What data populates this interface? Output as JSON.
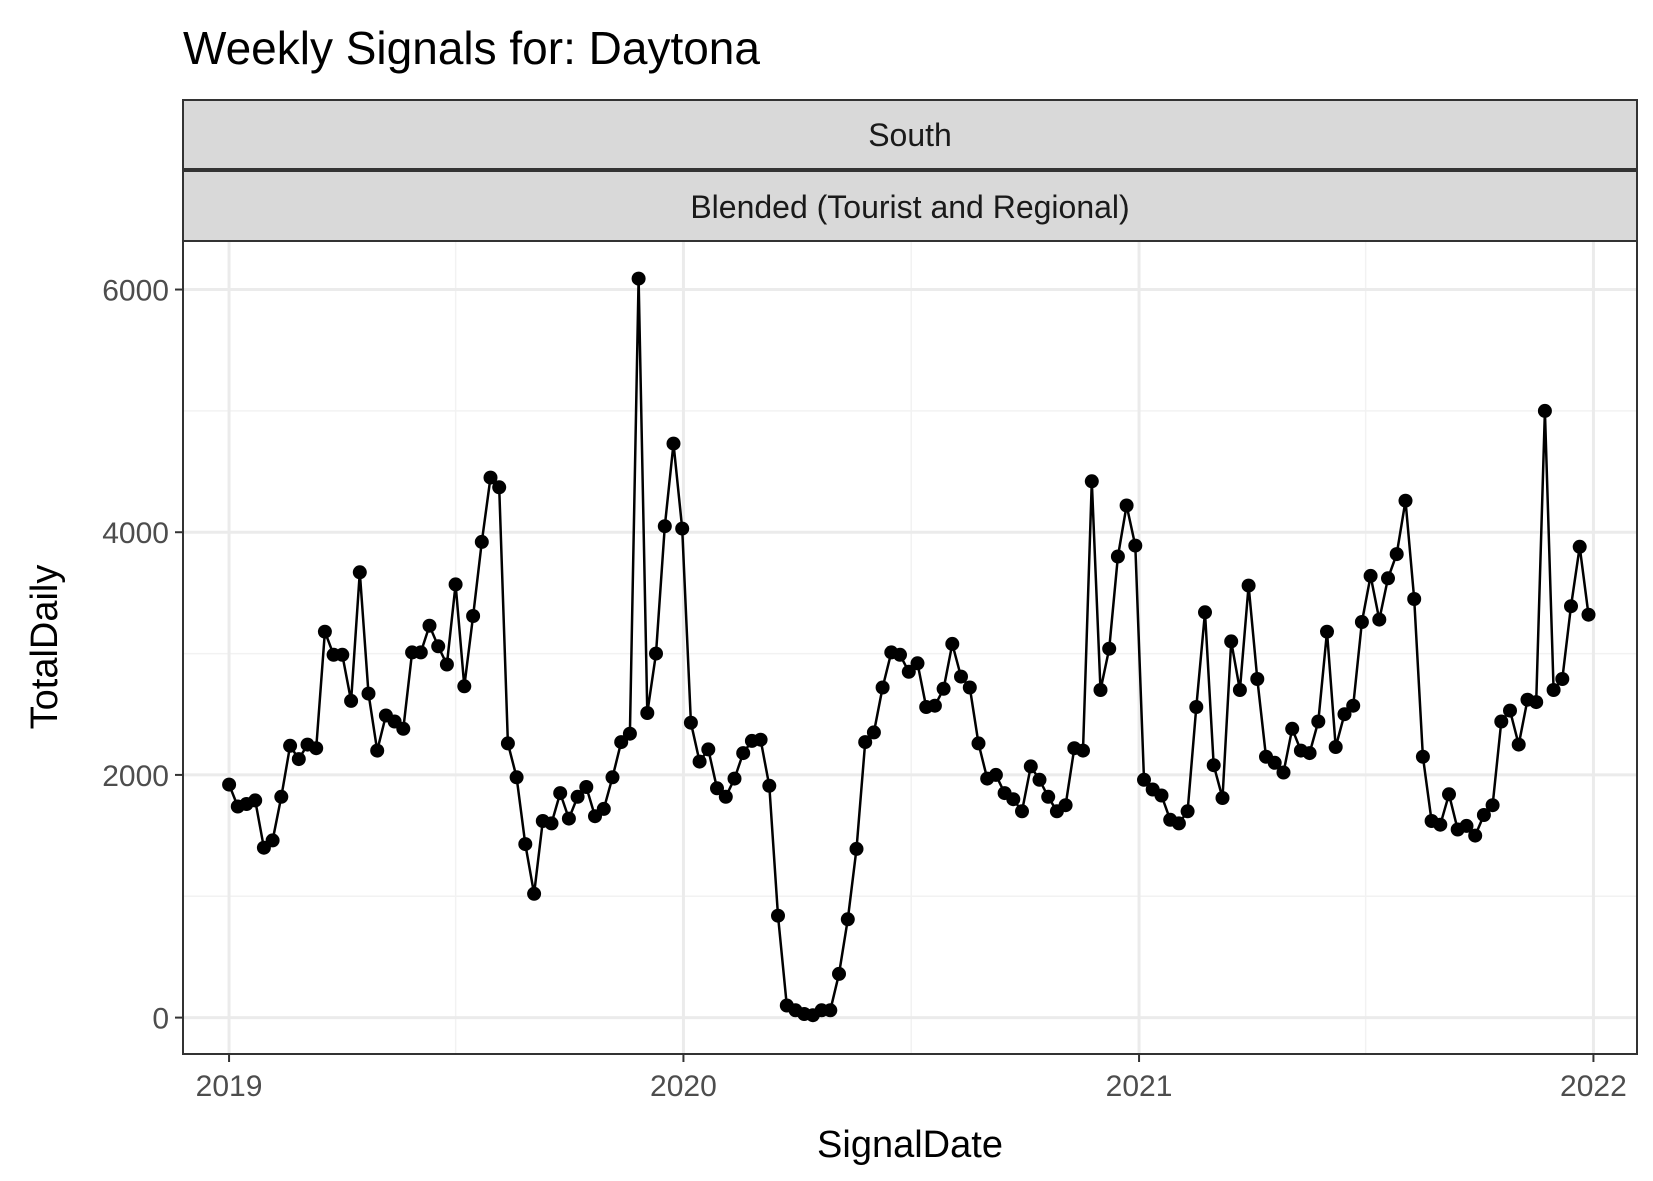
{
  "chart_data": {
    "type": "line",
    "title": "Weekly Signals for: Daytona",
    "facet_strips": [
      "South",
      "Blended (Tourist and Regional)"
    ],
    "xlabel": "SignalDate",
    "ylabel": "TotalDaily",
    "x_ticks": [
      "2019",
      "2020",
      "2021",
      "2022"
    ],
    "y_ticks": [
      0,
      2000,
      4000,
      6000
    ],
    "xlim": [
      "2018-11-25",
      "2022-02-05"
    ],
    "ylim": [
      -300,
      6400
    ],
    "markers": true,
    "grid": true,
    "legend": "none",
    "colors": {
      "line": "#000000",
      "point": "#000000",
      "strip_fill": "#d9d9d9",
      "panel_border": "#333333",
      "grid": "#ebebeb"
    },
    "series": [
      {
        "x": [
          "2019-01-01",
          "2019-01-08",
          "2019-01-15",
          "2019-01-22",
          "2019-01-29",
          "2019-02-05",
          "2019-02-12",
          "2019-02-19",
          "2019-02-26",
          "2019-03-05",
          "2019-03-12",
          "2019-03-19",
          "2019-03-26",
          "2019-04-02",
          "2019-04-09",
          "2019-04-16",
          "2019-04-23",
          "2019-04-30",
          "2019-05-07",
          "2019-05-14",
          "2019-05-21",
          "2019-05-28",
          "2019-06-04",
          "2019-06-11",
          "2019-06-18",
          "2019-06-25",
          "2019-07-02",
          "2019-07-09",
          "2019-07-16",
          "2019-07-23",
          "2019-07-30",
          "2019-08-06",
          "2019-08-13",
          "2019-08-20",
          "2019-08-27",
          "2019-09-03",
          "2019-09-10",
          "2019-09-17",
          "2019-09-24",
          "2019-10-01",
          "2019-10-08",
          "2019-10-15",
          "2019-10-22",
          "2019-10-29",
          "2019-11-05",
          "2019-11-12",
          "2019-11-19",
          "2019-11-26",
          "2019-12-03",
          "2019-12-10",
          "2019-12-17",
          "2019-12-24",
          "2019-12-31",
          "2020-01-07",
          "2020-01-14",
          "2020-01-21",
          "2020-01-28",
          "2020-02-04",
          "2020-02-11",
          "2020-02-18",
          "2020-02-25",
          "2020-03-03",
          "2020-03-10",
          "2020-03-17",
          "2020-03-24",
          "2020-03-31",
          "2020-04-07",
          "2020-04-14",
          "2020-04-21",
          "2020-04-28",
          "2020-05-05",
          "2020-05-12",
          "2020-05-19",
          "2020-05-26",
          "2020-06-02",
          "2020-06-09",
          "2020-06-16",
          "2020-06-23",
          "2020-06-30",
          "2020-07-07",
          "2020-07-14",
          "2020-07-21",
          "2020-07-28",
          "2020-08-04",
          "2020-08-11",
          "2020-08-18",
          "2020-08-25",
          "2020-09-01",
          "2020-09-08",
          "2020-09-15",
          "2020-09-22",
          "2020-09-29",
          "2020-10-06",
          "2020-10-13",
          "2020-10-20",
          "2020-10-27",
          "2020-11-03",
          "2020-11-10",
          "2020-11-17",
          "2020-11-24",
          "2020-12-01",
          "2020-12-08",
          "2020-12-15",
          "2020-12-22",
          "2020-12-29",
          "2021-01-05",
          "2021-01-12",
          "2021-01-19",
          "2021-01-26",
          "2021-02-02",
          "2021-02-09",
          "2021-02-16",
          "2021-02-23",
          "2021-03-02",
          "2021-03-09",
          "2021-03-16",
          "2021-03-23",
          "2021-03-30",
          "2021-04-06",
          "2021-04-13",
          "2021-04-20",
          "2021-04-27",
          "2021-05-04",
          "2021-05-11",
          "2021-05-18",
          "2021-05-25",
          "2021-06-01",
          "2021-06-08",
          "2021-06-15",
          "2021-06-22",
          "2021-06-29",
          "2021-07-06",
          "2021-07-13",
          "2021-07-20",
          "2021-07-27",
          "2021-08-03",
          "2021-08-10",
          "2021-08-17",
          "2021-08-24",
          "2021-08-31",
          "2021-09-07",
          "2021-09-14",
          "2021-09-21",
          "2021-09-28",
          "2021-10-05",
          "2021-10-12",
          "2021-10-19",
          "2021-10-26",
          "2021-11-02",
          "2021-11-09",
          "2021-11-16",
          "2021-11-23",
          "2021-11-30",
          "2021-12-07",
          "2021-12-14",
          "2021-12-21",
          "2021-12-28"
        ],
        "values": [
          1920,
          1740,
          1760,
          1790,
          1400,
          1460,
          1820,
          2240,
          2130,
          2250,
          2220,
          3180,
          2990,
          2990,
          2610,
          3670,
          2670,
          2200,
          2490,
          2440,
          2380,
          3010,
          3010,
          3230,
          3060,
          2910,
          3570,
          2730,
          3310,
          3920,
          4450,
          4370,
          2260,
          1980,
          1430,
          1020,
          1620,
          1600,
          1850,
          1640,
          1820,
          1900,
          1660,
          1720,
          1980,
          2270,
          2340,
          6090,
          2510,
          3000,
          4050,
          4730,
          4030,
          2430,
          2110,
          2210,
          1890,
          1820,
          1970,
          2180,
          2280,
          2290,
          1910,
          840,
          100,
          60,
          30,
          20,
          60,
          60,
          360,
          810,
          1390,
          2270,
          2350,
          2720,
          3010,
          2990,
          2850,
          2920,
          2560,
          2570,
          2710,
          3080,
          2810,
          2720,
          2260,
          1970,
          2000,
          1850,
          1800,
          1700,
          2070,
          1960,
          1820,
          1700,
          1750,
          2220,
          2200,
          4420,
          2700,
          3040,
          3800,
          4220,
          3890,
          1960,
          1880,
          1830,
          1630,
          1600,
          1700,
          2560,
          3340,
          2080,
          1810,
          3100,
          2700,
          3560,
          2790,
          2150,
          2100,
          2020,
          2380,
          2200,
          2180,
          2440,
          3180,
          2230,
          2500,
          2570,
          3260,
          3640,
          3280,
          3620,
          3820,
          4260,
          3450,
          2150,
          1620,
          1590,
          1840,
          1550,
          1580,
          1500,
          1670,
          1750,
          2440,
          2530,
          2250,
          2620,
          2600,
          5000,
          2700,
          2790,
          3390,
          3880,
          3320
        ]
      }
    ]
  }
}
